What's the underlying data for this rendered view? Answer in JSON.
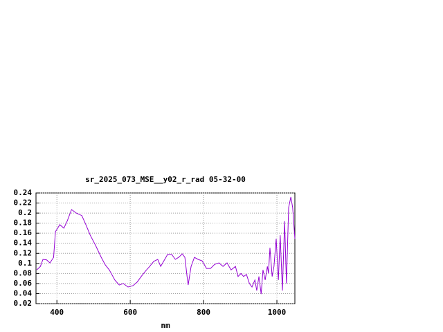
{
  "chart_data": {
    "type": "line",
    "title": "sr_2025_073_MSE__y02_r_rad 05-32-00",
    "x_label": "nm",
    "xlim": [
      343,
      1049
    ],
    "xticks": [
      400,
      600,
      800,
      1000
    ],
    "ylim": [
      0.02,
      0.24
    ],
    "yticks": [
      0.02,
      0.04,
      0.06,
      0.08,
      0.1,
      0.12,
      0.14,
      0.16,
      0.18,
      0.2,
      0.22,
      0.24
    ],
    "grid": true,
    "series": [
      {
        "color": "#9400d3",
        "x": [
          345,
          355,
          362,
          372,
          381,
          391,
          396,
          408,
          419,
          428,
          440,
          453,
          468,
          479,
          491,
          506,
          521,
          532,
          543,
          558,
          570,
          581,
          594,
          608,
          619,
          630,
          642,
          653,
          664,
          675,
          683,
          691,
          702,
          713,
          723,
          732,
          742,
          749,
          755,
          758,
          766,
          775,
          785,
          796,
          808,
          819,
          830,
          842,
          853,
          864,
          875,
          887,
          894,
          902,
          909,
          917,
          925,
          932,
          940,
          945,
          951,
          957,
          962,
          968,
          974,
          977,
          981,
          987,
          992,
          998,
          1004,
          1009,
          1015,
          1021,
          1026,
          1032,
          1038,
          1043,
          1049
        ],
        "values": [
          0.087,
          0.094,
          0.108,
          0.107,
          0.101,
          0.112,
          0.163,
          0.177,
          0.17,
          0.184,
          0.207,
          0.2,
          0.195,
          0.177,
          0.156,
          0.135,
          0.112,
          0.097,
          0.087,
          0.067,
          0.057,
          0.06,
          0.053,
          0.056,
          0.063,
          0.074,
          0.085,
          0.094,
          0.104,
          0.108,
          0.094,
          0.104,
          0.118,
          0.118,
          0.108,
          0.112,
          0.119,
          0.112,
          0.074,
          0.057,
          0.094,
          0.112,
          0.108,
          0.105,
          0.09,
          0.09,
          0.098,
          0.101,
          0.094,
          0.101,
          0.087,
          0.094,
          0.074,
          0.08,
          0.074,
          0.078,
          0.06,
          0.053,
          0.067,
          0.046,
          0.074,
          0.039,
          0.087,
          0.067,
          0.094,
          0.08,
          0.131,
          0.074,
          0.094,
          0.149,
          0.067,
          0.156,
          0.046,
          0.184,
          0.06,
          0.211,
          0.232,
          0.211,
          0.149
        ]
      }
    ]
  }
}
